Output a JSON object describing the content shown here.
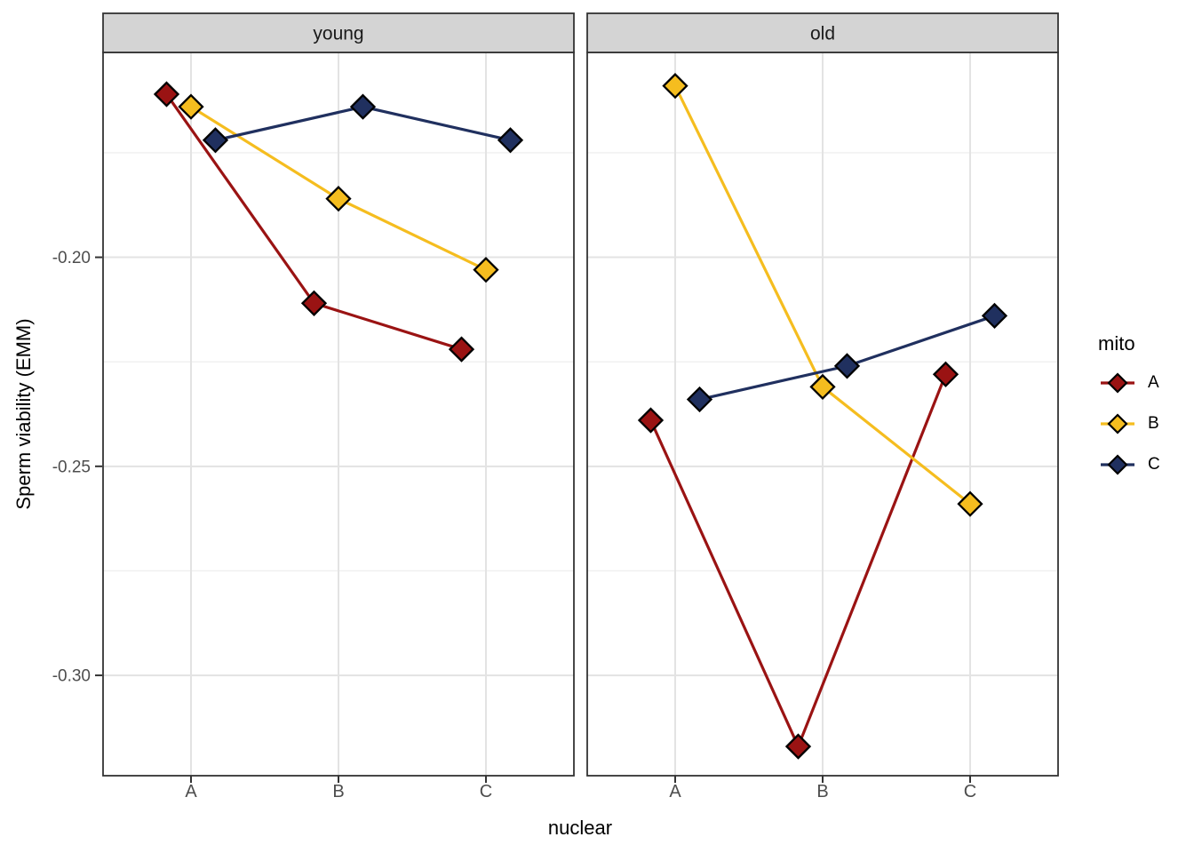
{
  "figure": {
    "x_axis_title": "nuclear",
    "y_axis_title": "Sperm viability (EMM)"
  },
  "legend": {
    "title": "mito",
    "entries": [
      {
        "label": "A",
        "color": "#9a1313"
      },
      {
        "label": "B",
        "color": "#f5bd1f"
      },
      {
        "label": "C",
        "color": "#20305f"
      }
    ]
  },
  "colors": {
    "marker_outline": "#000000",
    "strip_fill": "#d4d4d4",
    "panel_border": "#333333",
    "gridline_major": "#e3e3e3",
    "gridline_minor": "#efefef",
    "tick_label": "#4d4d4d",
    "tick_mark": "#333333",
    "background": "#ffffff"
  },
  "chart_data": {
    "type": "line",
    "title": "",
    "xlabel": "nuclear",
    "ylabel": "Sperm viability (EMM)",
    "facet_labels": [
      "young",
      "old"
    ],
    "categories": [
      "A",
      "B",
      "C"
    ],
    "x_tick_labels": [
      "A",
      "B",
      "C"
    ],
    "y_ticks": [
      {
        "value": -0.2,
        "label": "-0.20"
      },
      {
        "value": -0.25,
        "label": "-0.25"
      },
      {
        "value": -0.3,
        "label": "-0.30"
      }
    ],
    "minor_gridlines": [
      -0.175,
      -0.225,
      -0.275
    ],
    "ylim": [
      -0.324,
      -0.151
    ],
    "legend_position": "right",
    "marker": "diamond",
    "dodge": true,
    "panels": [
      {
        "facet": "young",
        "series": [
          {
            "name": "A",
            "color": "#9a1313",
            "values": [
              -0.161,
              -0.211,
              -0.222
            ]
          },
          {
            "name": "B",
            "color": "#f5bd1f",
            "values": [
              -0.164,
              -0.186,
              -0.203
            ]
          },
          {
            "name": "C",
            "color": "#20305f",
            "values": [
              -0.172,
              -0.164,
              -0.172
            ]
          }
        ]
      },
      {
        "facet": "old",
        "series": [
          {
            "name": "A",
            "color": "#9a1313",
            "values": [
              -0.239,
              -0.317,
              -0.228
            ]
          },
          {
            "name": "B",
            "color": "#f5bd1f",
            "values": [
              -0.159,
              -0.231,
              -0.259
            ]
          },
          {
            "name": "C",
            "color": "#20305f",
            "values": [
              -0.234,
              -0.226,
              -0.214
            ]
          }
        ]
      }
    ]
  }
}
